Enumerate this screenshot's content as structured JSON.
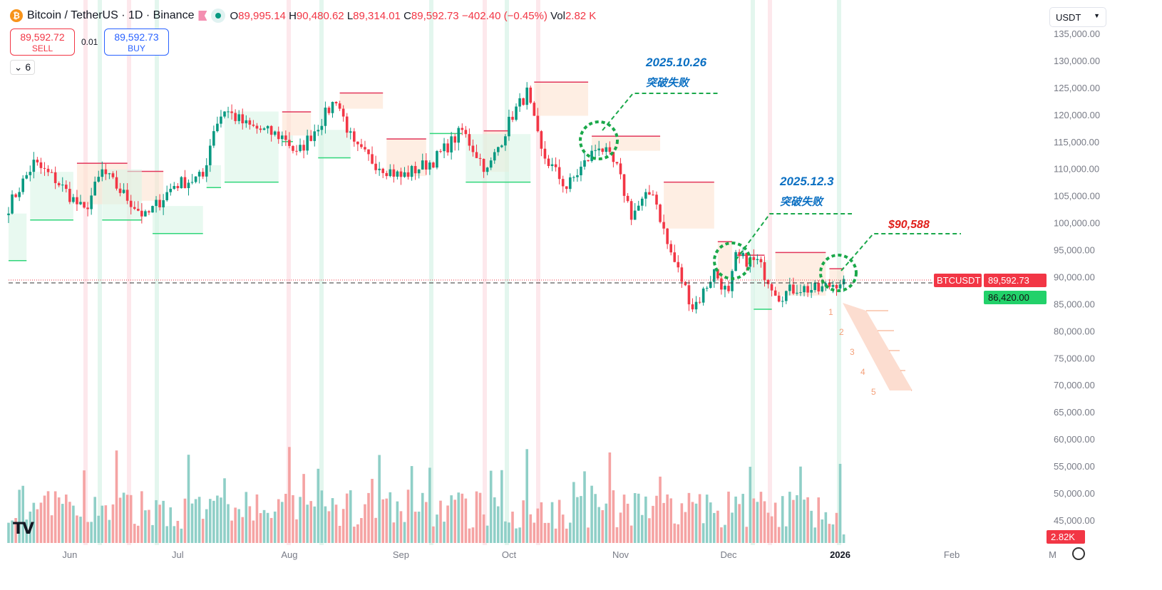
{
  "header": {
    "title": "Bitcoin / TetherUS · 1D · Binance",
    "o_label": "O",
    "o": "89,995.14",
    "h_label": "H",
    "h": "90,480.62",
    "l_label": "L",
    "l": "89,314.01",
    "c_label": "C",
    "c": "89,592.73",
    "change": "−402.40 (−0.45%)",
    "vol_label": "Vol",
    "vol": "2.82 K",
    "logo": "bitcoin-logo"
  },
  "trade": {
    "sell_price": "89,592.72",
    "sell_label": "SELL",
    "spread": "0.01",
    "buy_price": "89,592.73",
    "buy_label": "BUY"
  },
  "indicators_toggle": "6",
  "currency": "USDT",
  "price_tag": {
    "symbol": "BTCUSDT",
    "price": "89,592.73",
    "support": "86,420.00"
  },
  "volume_tag": "2.82K",
  "colors": {
    "up": "#089981",
    "down": "#f23645",
    "up_vol": "#8fcfc7",
    "down_vol": "#f5a3a3",
    "annot": "#0a6fc2",
    "target": "#e0201b",
    "dash": "#1aa84a",
    "proj": "#f4a07a"
  },
  "annotations": [
    {
      "date": "2025.10.26",
      "text": "突破失败"
    },
    {
      "date": "2025.12.3",
      "text": "突破失败"
    },
    {
      "price_label": "$90,588"
    }
  ],
  "projection_steps": [
    "1",
    "2",
    "3",
    "4",
    "5"
  ],
  "chart_data": {
    "type": "candlestick",
    "title": "Bitcoin / TetherUS · 1D · Binance",
    "ylim": [
      45000,
      135000
    ],
    "yticks": [
      "135,000.00",
      "130,000.00",
      "125,000.00",
      "120,000.00",
      "115,000.00",
      "110,000.00",
      "105,000.00",
      "100,000.00",
      "95,000.00",
      "90,000.00",
      "85,000.00",
      "80,000.00",
      "75,000.00",
      "70,000.00",
      "65,000.00",
      "60,000.00",
      "55,000.00",
      "50,000.00",
      "45,000.00"
    ],
    "xticks": [
      {
        "label": "Jun",
        "date": "2025-06-01"
      },
      {
        "label": "Jul",
        "date": "2025-07-01"
      },
      {
        "label": "Aug",
        "date": "2025-08-01"
      },
      {
        "label": "Sep",
        "date": "2025-09-01"
      },
      {
        "label": "Oct",
        "date": "2025-10-01"
      },
      {
        "label": "Nov",
        "date": "2025-11-01"
      },
      {
        "label": "Dec",
        "date": "2025-12-01"
      },
      {
        "label": "2026",
        "date": "2026-01-01"
      },
      {
        "label": "Feb",
        "date": "2026-02-01"
      },
      {
        "label": "M",
        "date": "2026-03-01"
      }
    ],
    "start": "2025-05-15",
    "close_anchors": [
      [
        "2025-05-15",
        103000
      ],
      [
        "2025-05-22",
        111000
      ],
      [
        "2025-05-28",
        108000
      ],
      [
        "2025-06-05",
        102000
      ],
      [
        "2025-06-10",
        109500
      ],
      [
        "2025-06-17",
        104500
      ],
      [
        "2025-06-22",
        101000
      ],
      [
        "2025-06-30",
        107000
      ],
      [
        "2025-07-08",
        108500
      ],
      [
        "2025-07-11",
        117500
      ],
      [
        "2025-07-14",
        121000
      ],
      [
        "2025-07-20",
        118000
      ],
      [
        "2025-07-31",
        115700
      ],
      [
        "2025-08-03",
        112500
      ],
      [
        "2025-08-10",
        119000
      ],
      [
        "2025-08-14",
        123000
      ],
      [
        "2025-08-19",
        114000
      ],
      [
        "2025-08-25",
        111000
      ],
      [
        "2025-09-01",
        108500
      ],
      [
        "2025-09-10",
        111500
      ],
      [
        "2025-09-18",
        117000
      ],
      [
        "2025-09-25",
        109500
      ],
      [
        "2025-10-02",
        120000
      ],
      [
        "2025-10-06",
        124000
      ],
      [
        "2025-10-10",
        113000
      ],
      [
        "2025-10-17",
        106500
      ],
      [
        "2025-10-26",
        114500
      ],
      [
        "2025-10-31",
        110000
      ],
      [
        "2025-11-04",
        101500
      ],
      [
        "2025-11-10",
        106000
      ],
      [
        "2025-11-14",
        96000
      ],
      [
        "2025-11-21",
        84500
      ],
      [
        "2025-11-23",
        86000
      ],
      [
        "2025-11-27",
        91000
      ],
      [
        "2025-12-01",
        86500
      ],
      [
        "2025-12-03",
        93500
      ],
      [
        "2025-12-09",
        92700
      ],
      [
        "2025-12-15",
        86500
      ],
      [
        "2025-12-20",
        88000
      ],
      [
        "2025-12-26",
        87500
      ],
      [
        "2026-01-02",
        89592.73
      ]
    ],
    "supertrend_upper": [
      [
        "2025-06-03",
        "2025-06-17",
        111000
      ],
      [
        "2025-06-17",
        "2025-06-27",
        109500
      ],
      [
        "2025-07-30",
        "2025-08-07",
        120500
      ],
      [
        "2025-08-15",
        "2025-08-27",
        124000
      ],
      [
        "2025-08-28",
        "2025-09-08",
        115500
      ],
      [
        "2025-09-24",
        "2025-10-01",
        117000
      ],
      [
        "2025-10-08",
        "2025-10-23",
        126000
      ],
      [
        "2025-10-24",
        "2025-11-12",
        116000
      ],
      [
        "2025-11-13",
        "2025-11-27",
        107500
      ],
      [
        "2025-11-28",
        "2025-12-02",
        96500
      ],
      [
        "2025-12-03",
        "2025-12-11",
        94000
      ],
      [
        "2025-12-14",
        "2025-12-28",
        94500
      ],
      [
        "2025-12-29",
        "2026-01-02",
        91500
      ]
    ],
    "supertrend_lower": [
      [
        "2025-05-15",
        "2025-05-20",
        93000
      ],
      [
        "2025-05-21",
        "2025-06-02",
        100500
      ],
      [
        "2025-06-10",
        "2025-06-21",
        100500
      ],
      [
        "2025-06-24",
        "2025-07-08",
        98000
      ],
      [
        "2025-07-09",
        "2025-07-13",
        106500
      ],
      [
        "2025-07-14",
        "2025-07-29",
        107500
      ],
      [
        "2025-07-30",
        "2025-08-02",
        115000
      ],
      [
        "2025-08-09",
        "2025-08-18",
        112000
      ],
      [
        "2025-09-09",
        "2025-09-18",
        116500
      ],
      [
        "2025-09-19",
        "2025-10-07",
        107500
      ],
      [
        "2025-12-08",
        "2025-12-13",
        84000
      ]
    ]
  }
}
